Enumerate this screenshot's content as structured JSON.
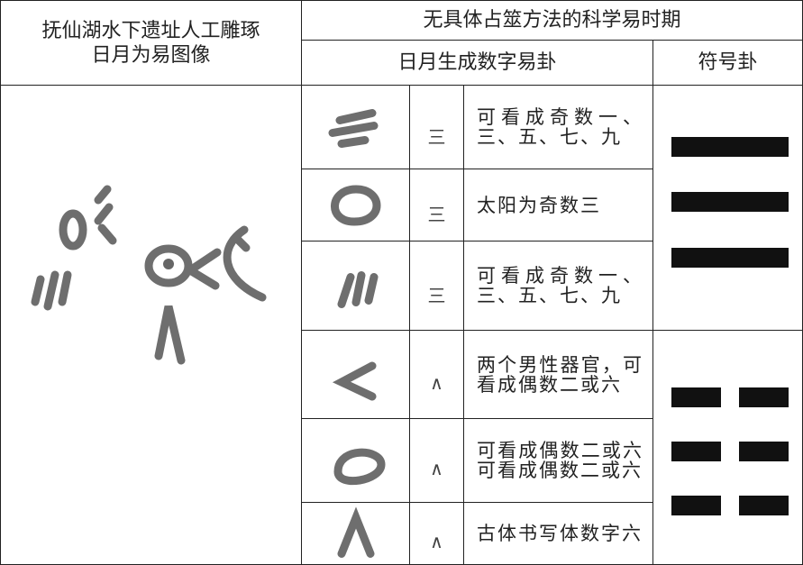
{
  "header": {
    "image_column": [
      "抚仙湖水下遗址人工雕琢",
      "日月为易图像"
    ],
    "period": "无具体占筮方法的科学易时期",
    "number_trigram": "日月生成数字易卦",
    "symbol_trigram": "符号卦"
  },
  "table": {
    "rows": [
      [
        "三",
        "可看成奇数一、三、五、七、九"
      ],
      [
        "三",
        "太阳为奇数三"
      ],
      [
        "三",
        "可看成奇数一、三、五、七、九"
      ],
      [
        "∧",
        "两个男性器官，可看成偶数二或六"
      ],
      [
        "∧",
        "可看成偶数二或六可看成偶数二或六"
      ],
      [
        "∧",
        "古体书写体数字六"
      ]
    ]
  }
}
